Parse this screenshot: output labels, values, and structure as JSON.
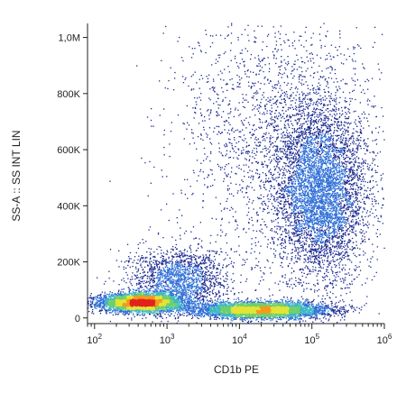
{
  "chart_data": {
    "type": "scatter",
    "subtype": "flow-cytometry-density-dot-plot",
    "xlabel": "CD1b PE",
    "ylabel": "SS-A :: SS INT LIN",
    "x_scale": "log",
    "y_scale": "linear",
    "xlim": [
      80,
      1000000
    ],
    "ylim": [
      -20000,
      1050000
    ],
    "x_ticks": [
      {
        "value": 100,
        "base": "10",
        "exp": "2"
      },
      {
        "value": 1000,
        "base": "10",
        "exp": "3"
      },
      {
        "value": 10000,
        "base": "10",
        "exp": "4"
      },
      {
        "value": 100000,
        "base": "10",
        "exp": "5"
      },
      {
        "value": 1000000,
        "base": "10",
        "exp": "6"
      }
    ],
    "y_ticks": [
      {
        "value": 0,
        "label": "0"
      },
      {
        "value": 200000,
        "label": "200K"
      },
      {
        "value": 400000,
        "label": "400K"
      },
      {
        "value": 600000,
        "label": "600K"
      },
      {
        "value": 800000,
        "label": "800K"
      },
      {
        "value": 1000000,
        "label": "1,0M"
      }
    ],
    "grid": false,
    "legend": "none",
    "colormap": [
      "#1b2a8f",
      "#2f6fd6",
      "#3fb8c4",
      "#6fd06a",
      "#e3e437",
      "#f39a1f",
      "#e0231c"
    ],
    "populations": [
      {
        "x_center": 450,
        "y_center": 55000,
        "x_spread_decades": 0.28,
        "y_spread": 16000,
        "density": "high"
      },
      {
        "x_center": 1500,
        "y_center": 140000,
        "x_spread_decades": 0.35,
        "y_spread": 55000,
        "density": "low"
      },
      {
        "x_center": 20000,
        "y_center": 28000,
        "x_spread_decades": 0.45,
        "y_spread": 14000,
        "density": "high"
      },
      {
        "x_center": 130000,
        "y_center": 450000,
        "x_spread_decades": 0.33,
        "y_spread": 160000,
        "density": "high"
      },
      {
        "x_center": 30000,
        "y_center": 650000,
        "x_spread_decades": 0.7,
        "y_spread": 230000,
        "density": "low"
      }
    ]
  }
}
